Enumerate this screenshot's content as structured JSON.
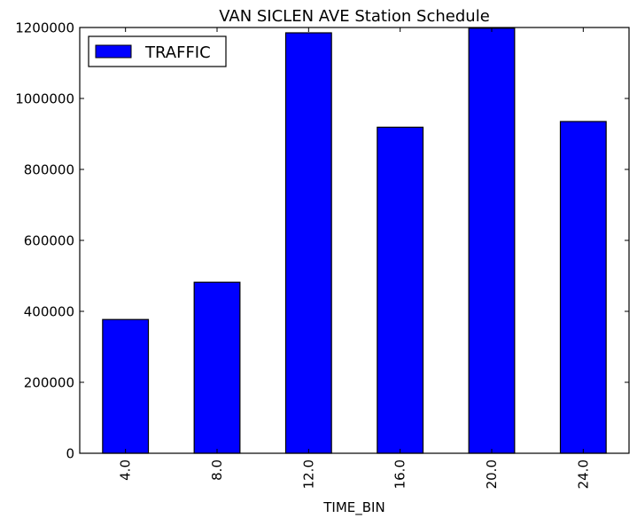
{
  "chart_data": {
    "type": "bar",
    "title": "VAN SICLEN AVE Station Schedule",
    "xlabel": "TIME_BIN",
    "ylabel": "",
    "categories": [
      "4.0",
      "8.0",
      "12.0",
      "16.0",
      "20.0",
      "24.0"
    ],
    "series": [
      {
        "name": "TRAFFIC",
        "color": "#0000ff",
        "values": [
          377000,
          482000,
          1185000,
          919000,
          1198000,
          935000
        ]
      }
    ],
    "ylim": [
      0,
      1200000
    ],
    "yticks": [
      0,
      200000,
      400000,
      600000,
      800000,
      1000000,
      1200000
    ],
    "ytick_labels": [
      "0",
      "200000",
      "400000",
      "600000",
      "800000",
      "1000000",
      "1200000"
    ],
    "legend_position": "top-left",
    "grid": false
  }
}
